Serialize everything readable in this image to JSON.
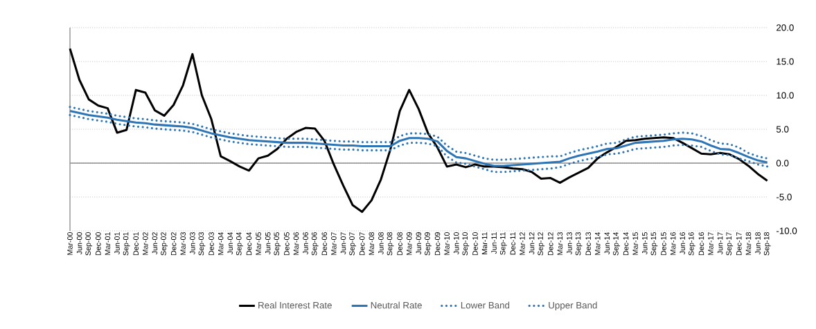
{
  "chart_data": {
    "type": "line",
    "categories": [
      "Mar-00",
      "Jun-00",
      "Sep-00",
      "Dec-00",
      "Mar-01",
      "Jun-01",
      "Sep-01",
      "Dec-01",
      "Mar-02",
      "Jun-02",
      "Sep-02",
      "Dec-02",
      "Mar-03",
      "Jun-03",
      "Sep-03",
      "Dec-03",
      "Mar-04",
      "Jun-04",
      "Sep-04",
      "Dec-04",
      "Mar-05",
      "Jun-05",
      "Sep-05",
      "Dec-05",
      "Mar-06",
      "Jun-06",
      "Sep-06",
      "Dec-06",
      "Mar-07",
      "Jun-07",
      "Sep-07",
      "Dec-07",
      "Mar-08",
      "Jun-08",
      "Sep-08",
      "Dec-08",
      "Mar-09",
      "Jun-09",
      "Sep-09",
      "Dec-09",
      "Mar-10",
      "Jun-10",
      "Sep-10",
      "Dec-10",
      "Mar-11",
      "Jun-11",
      "Sep-11",
      "Dec-11",
      "Mar-12",
      "Jun-12",
      "Sep-12",
      "Dec-12",
      "Mar-13",
      "Jun-13",
      "Sep-13",
      "Dec-13",
      "Mar-14",
      "Jun-14",
      "Sep-14",
      "Dec-14",
      "Mar-15",
      "Jun-15",
      "Sep-15",
      "Dec-15",
      "Mar-16",
      "Jun-16",
      "Sep-16",
      "Dec-16",
      "Mar-17",
      "Jun-17",
      "Sep-17",
      "Dec-17",
      "Mar-18",
      "Jun-18",
      "Sep-18"
    ],
    "series": [
      {
        "name": "Real Interest Rate",
        "color": "#000000",
        "line_style": "solid",
        "values": [
          16.9,
          12.3,
          9.4,
          8.5,
          8.1,
          4.5,
          4.9,
          10.8,
          10.4,
          7.8,
          7.0,
          8.6,
          11.5,
          16.1,
          10.0,
          6.5,
          1.0,
          0.3,
          -0.5,
          -1.1,
          0.7,
          1.1,
          2.1,
          3.6,
          4.6,
          5.2,
          5.1,
          3.3,
          -0.2,
          -3.3,
          -6.2,
          -7.2,
          -5.5,
          -2.4,
          2.0,
          7.7,
          10.8,
          8.0,
          4.4,
          2.3,
          -0.5,
          -0.2,
          -0.6,
          -0.2,
          -0.5,
          -0.5,
          -0.6,
          -0.8,
          -0.9,
          -1.3,
          -2.3,
          -2.2,
          -2.9,
          -2.1,
          -1.4,
          -0.7,
          0.7,
          1.6,
          2.4,
          3.3,
          3.4,
          3.6,
          3.7,
          3.8,
          3.7,
          3.0,
          2.2,
          1.4,
          1.3,
          1.5,
          1.3,
          0.6,
          -0.4,
          -1.6,
          -2.6
        ]
      },
      {
        "name": "Neutral Rate",
        "color": "#2e75b6",
        "line_style": "solid",
        "values": [
          7.7,
          7.4,
          7.1,
          6.9,
          6.7,
          6.4,
          6.2,
          6.0,
          5.9,
          5.7,
          5.6,
          5.5,
          5.4,
          5.2,
          4.8,
          4.4,
          4.1,
          3.8,
          3.6,
          3.4,
          3.3,
          3.2,
          3.1,
          3.0,
          3.0,
          3.0,
          2.9,
          2.8,
          2.7,
          2.6,
          2.6,
          2.5,
          2.5,
          2.5,
          2.5,
          3.3,
          3.7,
          3.7,
          3.6,
          3.2,
          1.8,
          0.9,
          0.7,
          0.3,
          -0.1,
          -0.4,
          -0.4,
          -0.3,
          -0.2,
          -0.1,
          0.0,
          0.1,
          0.2,
          0.7,
          1.1,
          1.4,
          1.7,
          2.1,
          2.2,
          2.6,
          3.0,
          3.1,
          3.2,
          3.3,
          3.5,
          3.6,
          3.5,
          3.2,
          2.6,
          2.1,
          2.0,
          1.5,
          0.9,
          0.4,
          0.1
        ]
      },
      {
        "name": "Lower Band",
        "color": "#2e75b6",
        "line_style": "dotted",
        "values": [
          7.1,
          6.8,
          6.5,
          6.3,
          6.1,
          5.8,
          5.6,
          5.4,
          5.3,
          5.1,
          5.0,
          4.9,
          4.8,
          4.6,
          4.2,
          3.8,
          3.5,
          3.2,
          3.0,
          2.8,
          2.7,
          2.6,
          2.5,
          2.4,
          2.4,
          2.4,
          2.3,
          2.2,
          2.1,
          2.0,
          2.0,
          1.9,
          1.9,
          1.9,
          1.9,
          2.6,
          3.0,
          3.0,
          2.9,
          2.5,
          1.0,
          0.1,
          -0.1,
          -0.5,
          -0.9,
          -1.3,
          -1.3,
          -1.2,
          -1.1,
          -1.0,
          -0.9,
          -0.8,
          -0.6,
          -0.1,
          0.3,
          0.6,
          0.9,
          1.3,
          1.4,
          1.7,
          2.1,
          2.2,
          2.3,
          2.4,
          2.6,
          2.7,
          2.6,
          2.4,
          1.8,
          1.3,
          1.2,
          0.7,
          0.3,
          -0.2,
          -0.5
        ]
      },
      {
        "name": "Upper Band",
        "color": "#2e75b6",
        "line_style": "dotted",
        "values": [
          8.3,
          8.0,
          7.7,
          7.5,
          7.3,
          7.0,
          6.8,
          6.6,
          6.5,
          6.3,
          6.2,
          6.1,
          6.0,
          5.8,
          5.4,
          5.0,
          4.7,
          4.4,
          4.2,
          4.0,
          3.9,
          3.8,
          3.7,
          3.6,
          3.6,
          3.6,
          3.5,
          3.4,
          3.3,
          3.2,
          3.2,
          3.1,
          3.1,
          3.1,
          3.1,
          4.0,
          4.4,
          4.4,
          4.3,
          3.9,
          2.6,
          1.7,
          1.5,
          1.1,
          0.7,
          0.5,
          0.5,
          0.6,
          0.7,
          0.8,
          0.9,
          1.0,
          1.0,
          1.5,
          1.9,
          2.2,
          2.5,
          2.9,
          3.0,
          3.5,
          3.9,
          4.0,
          4.1,
          4.2,
          4.4,
          4.5,
          4.4,
          4.0,
          3.4,
          2.9,
          2.8,
          2.3,
          1.5,
          1.0,
          0.7
        ]
      }
    ],
    "ylim": [
      -10,
      20
    ],
    "yticks": [
      {
        "value": -10,
        "label": "-10.0"
      },
      {
        "value": -5,
        "label": "-5.0"
      },
      {
        "value": 0,
        "label": "0.0"
      },
      {
        "value": 5,
        "label": "5.0"
      },
      {
        "value": 10,
        "label": "10.0"
      },
      {
        "value": 15,
        "label": "15.0"
      },
      {
        "value": 20,
        "label": "20.0"
      }
    ],
    "grid": "y",
    "legend": "bottom",
    "marker": "none"
  }
}
